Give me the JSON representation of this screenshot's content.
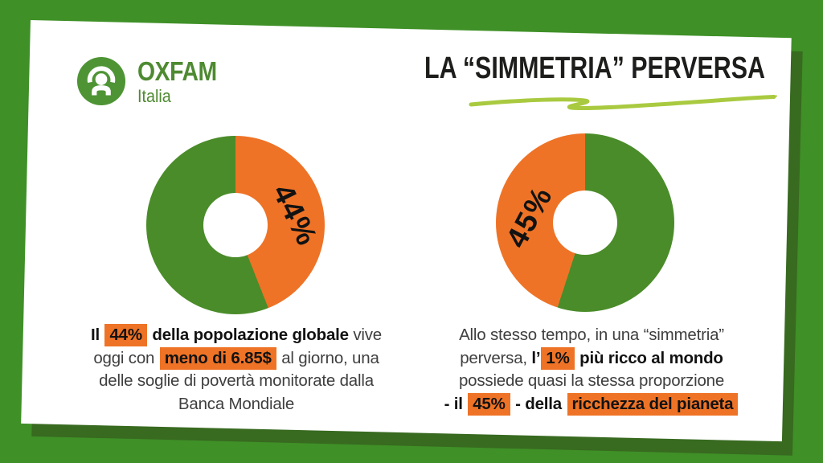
{
  "background": {
    "color": "#3f9027",
    "card_shadow_color": "#386a20",
    "card_color": "#ffffff"
  },
  "logo": {
    "brand": "OXFAM",
    "region": "Italia",
    "color": "#4e8a31"
  },
  "header": {
    "title": "LA “SIMMETRIA” PERVERSA",
    "underline_color": "#a9ca40"
  },
  "accent_colors": {
    "orange": "#ee7326",
    "chart_green": "#4a8c29",
    "text_dark": "#121212",
    "text_gray": "#3f3f3f"
  },
  "chart_data": [
    {
      "type": "pie",
      "donut": true,
      "start": "top",
      "direction": "clockwise",
      "center_label": "44%",
      "slices": [
        {
          "label": "44%",
          "value": 44,
          "color": "#ee7326"
        },
        {
          "value": 56,
          "color": "#4a8c29"
        }
      ]
    },
    {
      "type": "pie",
      "donut": true,
      "start": "top",
      "direction": "counterclockwise",
      "center_label": "45%",
      "slices": [
        {
          "label": "45%",
          "value": 45,
          "color": "#ee7326"
        },
        {
          "value": 55,
          "color": "#4a8c29"
        }
      ]
    }
  ],
  "captions": [
    {
      "lines": [
        [
          {
            "t": "Il ",
            "b": true
          },
          {
            "t": "44%",
            "b": true,
            "h": true
          },
          {
            "t": " della popolazione globale",
            "b": true
          },
          {
            "t": " vive"
          }
        ],
        [
          {
            "t": "oggi con "
          },
          {
            "t": "meno di 6.85$",
            "b": true,
            "h": true
          },
          {
            "t": " al giorno, una"
          }
        ],
        [
          {
            "t": "delle soglie di povertà monitorate dalla"
          }
        ],
        [
          {
            "t": "Banca Mondiale"
          }
        ]
      ]
    },
    {
      "lines": [
        [
          {
            "t": "Allo stesso tempo, in una “simmetria”"
          }
        ],
        [
          {
            "t": "perversa, "
          },
          {
            "t": "l’",
            "b": true
          },
          {
            "t": "1%",
            "b": true,
            "h": true
          },
          {
            "t": " più ricco al mondo",
            "b": true
          }
        ],
        [
          {
            "t": "possiede quasi la stessa proporzione"
          }
        ],
        [
          {
            "t": "- il ",
            "b": true
          },
          {
            "t": "45%",
            "b": true,
            "h": true
          },
          {
            "t": " - ",
            "b": true
          },
          {
            "t": "della ",
            "b": true
          },
          {
            "t": "ricchezza del pianeta",
            "b": true,
            "h": true
          }
        ]
      ]
    }
  ]
}
